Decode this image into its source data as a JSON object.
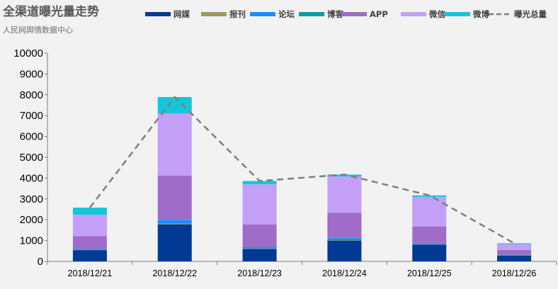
{
  "chart_data": {
    "type": "bar",
    "title": "全渠道曝光量走势",
    "subtitle": "人民网舆情数据中心",
    "categories": [
      "2018/12/21",
      "2018/12/22",
      "2018/12/23",
      "2018/12/24",
      "2018/12/25",
      "2018/12/26"
    ],
    "ylim": [
      0,
      10000
    ],
    "yticks": [
      0,
      1000,
      2000,
      3000,
      4000,
      5000,
      6000,
      7000,
      8000,
      9000,
      10000
    ],
    "stacked": true,
    "series": [
      {
        "name": "网媒",
        "type": "bar",
        "color": "#003a94",
        "values": [
          540,
          1780,
          600,
          1000,
          800,
          280
        ]
      },
      {
        "name": "报刊",
        "type": "bar",
        "color": "#9e9a5a",
        "values": [
          20,
          30,
          20,
          20,
          20,
          10
        ]
      },
      {
        "name": "论坛",
        "type": "bar",
        "color": "#1f8bff",
        "values": [
          40,
          170,
          60,
          90,
          60,
          20
        ]
      },
      {
        "name": "博客",
        "type": "bar",
        "color": "#0e9ba4",
        "values": [
          10,
          20,
          20,
          20,
          10,
          10
        ]
      },
      {
        "name": "APP",
        "type": "bar",
        "color": "#a06cc9",
        "values": [
          600,
          2120,
          1070,
          1200,
          790,
          230
        ]
      },
      {
        "name": "微信",
        "type": "bar",
        "color": "#c39ff7",
        "values": [
          1030,
          2990,
          1930,
          1750,
          1420,
          280
        ]
      },
      {
        "name": "微博",
        "type": "bar",
        "color": "#14c6d8",
        "values": [
          340,
          780,
          160,
          90,
          70,
          40
        ]
      },
      {
        "name": "曝光总量",
        "type": "line",
        "color": "#7f7f7f",
        "dashed": true,
        "values": [
          2580,
          7890,
          3860,
          4170,
          3170,
          870
        ]
      }
    ],
    "legend_position": "top",
    "grid": false
  }
}
